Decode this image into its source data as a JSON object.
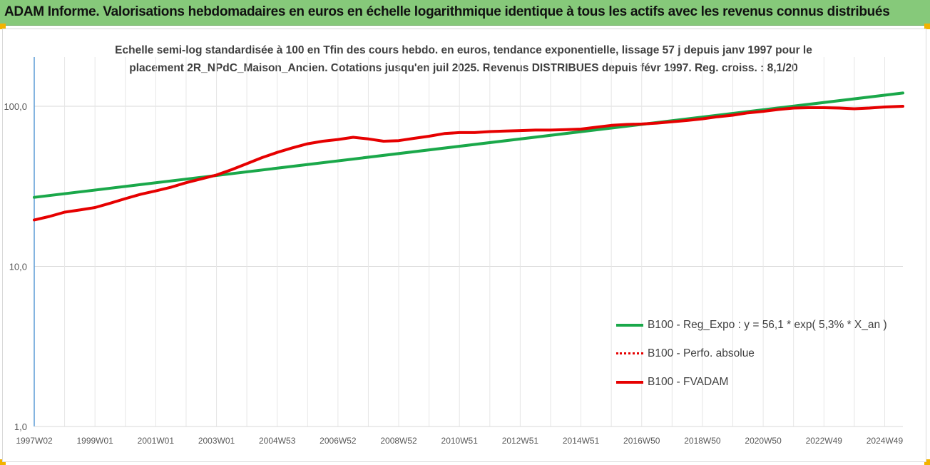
{
  "header": {
    "title": "ADAM Informe. Valorisations hebdomadaires en euros en échelle logarithmique identique à tous les actifs avec les revenus connus distribués"
  },
  "colors": {
    "banner": "#86c97a",
    "green": "#1aa84a",
    "red": "#e60000",
    "corner": "#f2b300"
  },
  "chart_data": {
    "type": "line",
    "title_lines": [
      "Echelle semi-log standardisée à 100 en Tfin des cours hebdo. en euros, tendance exponentielle, lissage 57 j depuis janv 1997 pour le",
      "placement 2R_NPdC_Maison_Ancien. Cotations jusqu'en juil 2025. Revenus DISTRIBUES depuis févr 1997. Reg. croiss. : 8,1/20"
    ],
    "y_scale": "log",
    "ylim": [
      1,
      200
    ],
    "y_ticks": [
      "1,0",
      "10,0",
      "100,0"
    ],
    "y_tick_values": [
      1,
      10,
      100
    ],
    "x_range": [
      1997.0,
      2025.6
    ],
    "x_tick_labels": [
      "1997W02",
      "1999W01",
      "2001W01",
      "2003W01",
      "2004W53",
      "2006W52",
      "2008W52",
      "2010W51",
      "2012W51",
      "2014W51",
      "2016W50",
      "2018W50",
      "2020W50",
      "2022W49",
      "2024W49"
    ],
    "x_tick_years": [
      1997.0,
      1999.0,
      2001.0,
      2003.0,
      2005.0,
      2007.0,
      2009.0,
      2011.0,
      2013.0,
      2015.0,
      2017.0,
      2019.0,
      2021.0,
      2023.0,
      2025.0
    ],
    "grid": "vertical",
    "legend_position": "bottom-right",
    "series": [
      {
        "name": "B100 - Reg_Expo : y = 56,1 * exp( 5,3% *  X_an )",
        "color": "#1aa84a",
        "style": "solid",
        "x": [
          1997.0,
          2025.6
        ],
        "y": [
          27,
          121
        ]
      },
      {
        "name": "B100 - Perfo. absolue",
        "color": "#e60000",
        "style": "dotted",
        "x": [],
        "y": []
      },
      {
        "name": "B100 - FVADAM",
        "color": "#e60000",
        "style": "solid",
        "x": [
          1997.0,
          1997.5,
          1998.0,
          1998.5,
          1999.0,
          1999.5,
          2000.0,
          2000.5,
          2001.0,
          2001.5,
          2002.0,
          2002.5,
          2003.0,
          2003.5,
          2004.0,
          2004.5,
          2005.0,
          2005.5,
          2006.0,
          2006.5,
          2007.0,
          2007.5,
          2008.0,
          2008.5,
          2009.0,
          2009.5,
          2010.0,
          2010.5,
          2011.0,
          2011.5,
          2012.0,
          2012.5,
          2013.0,
          2013.5,
          2014.0,
          2014.5,
          2015.0,
          2015.5,
          2016.0,
          2016.5,
          2017.0,
          2017.5,
          2018.0,
          2018.5,
          2019.0,
          2019.5,
          2020.0,
          2020.5,
          2021.0,
          2021.5,
          2022.0,
          2022.5,
          2023.0,
          2023.5,
          2024.0,
          2024.5,
          2025.0,
          2025.6
        ],
        "y": [
          19.5,
          20.5,
          21.8,
          22.5,
          23.3,
          24.8,
          26.5,
          28.2,
          29.6,
          31.2,
          33.3,
          35.2,
          37.2,
          40.2,
          43.8,
          47.8,
          51.5,
          55.0,
          58.3,
          60.5,
          62.0,
          64.0,
          62.5,
          60.5,
          61.0,
          63.0,
          65.0,
          67.5,
          68.5,
          68.5,
          69.5,
          70.0,
          70.5,
          71.0,
          71.0,
          71.5,
          72.0,
          74.0,
          76.0,
          77.0,
          77.5,
          78.5,
          80.0,
          81.5,
          83.5,
          86.0,
          88.0,
          91.0,
          93.0,
          95.5,
          97.5,
          98.0,
          98.0,
          97.5,
          96.5,
          97.5,
          99.0,
          100.0
        ]
      }
    ]
  }
}
